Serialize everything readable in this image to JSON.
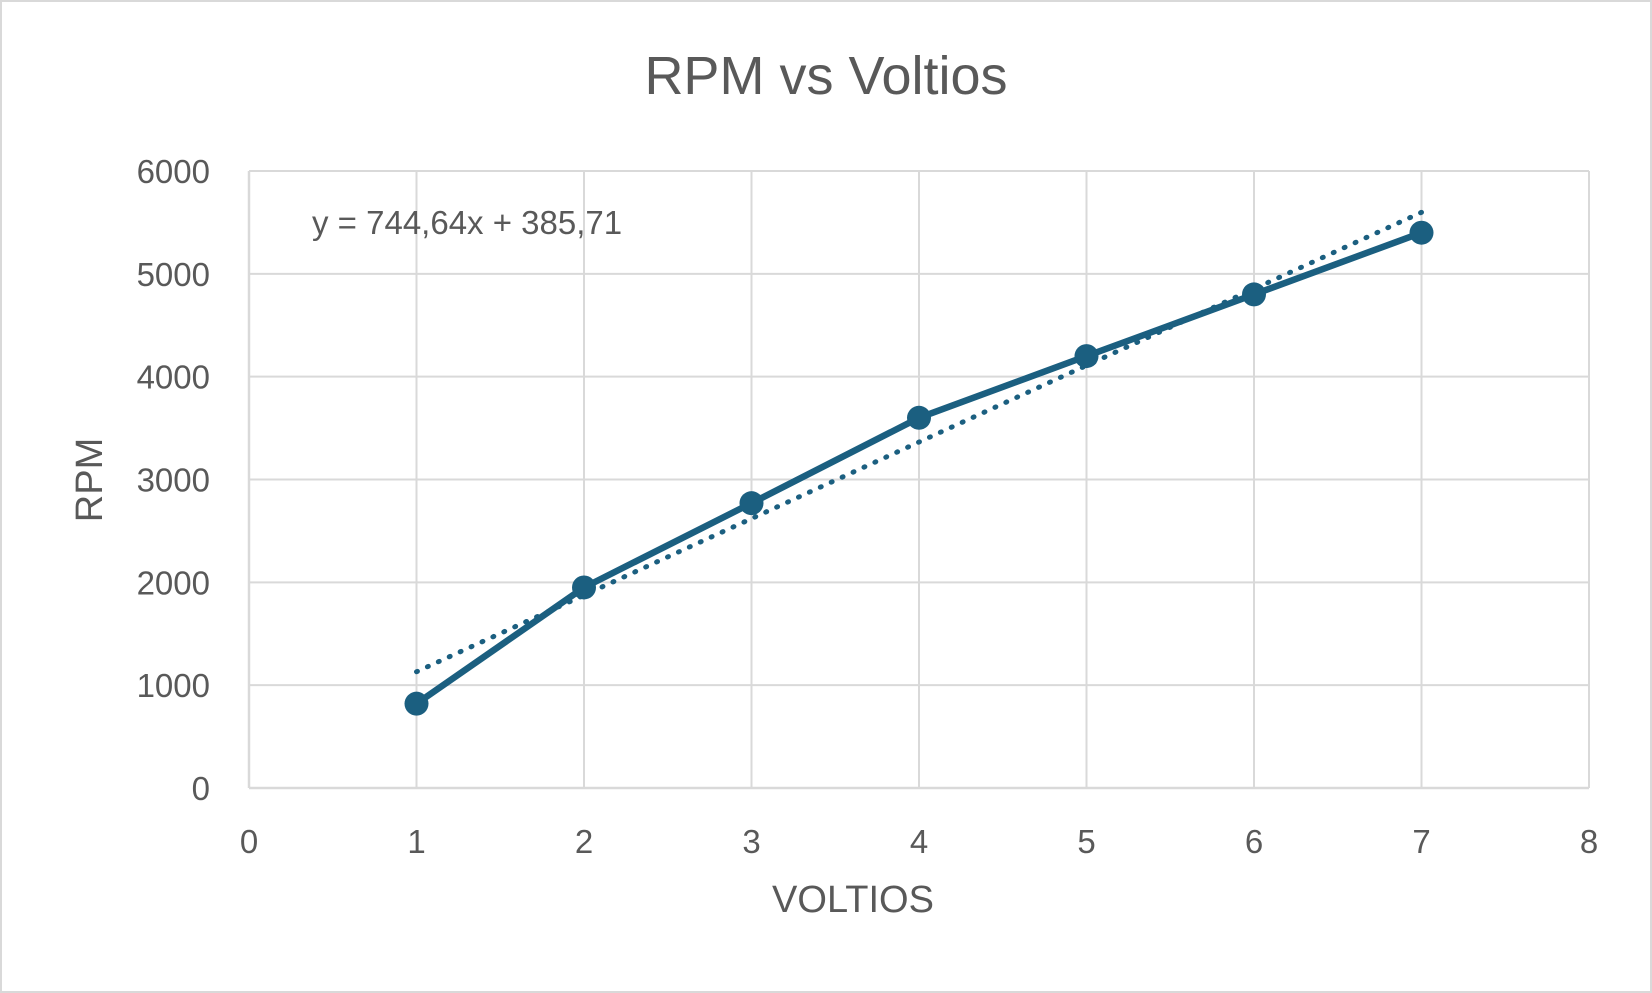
{
  "chart_data": {
    "type": "scatter",
    "title": "RPM vs Voltios",
    "xlabel": "VOLTIOS",
    "ylabel": "RPM",
    "xlim": [
      0,
      8
    ],
    "ylim": [
      0,
      6000
    ],
    "x_ticks": [
      "0",
      "1",
      "2",
      "3",
      "4",
      "5",
      "6",
      "7",
      "8"
    ],
    "y_ticks": [
      "0",
      "1000",
      "2000",
      "3000",
      "4000",
      "5000",
      "6000"
    ],
    "grid": true,
    "legend": "none",
    "series": [
      {
        "x": [
          1,
          2,
          3,
          4,
          5,
          6,
          7
        ],
        "y": [
          820,
          1950,
          2770,
          3600,
          4200,
          4800,
          5400
        ],
        "color": "#1b5f80",
        "line": "solid",
        "markers": true
      }
    ],
    "trendline": {
      "type": "linear",
      "slope": 744.64,
      "intercept": 385.71,
      "x_range": [
        1,
        7
      ],
      "style": "dotted",
      "color": "#1b5f80",
      "equation_label": "y = 744,64x + 385,71"
    }
  }
}
